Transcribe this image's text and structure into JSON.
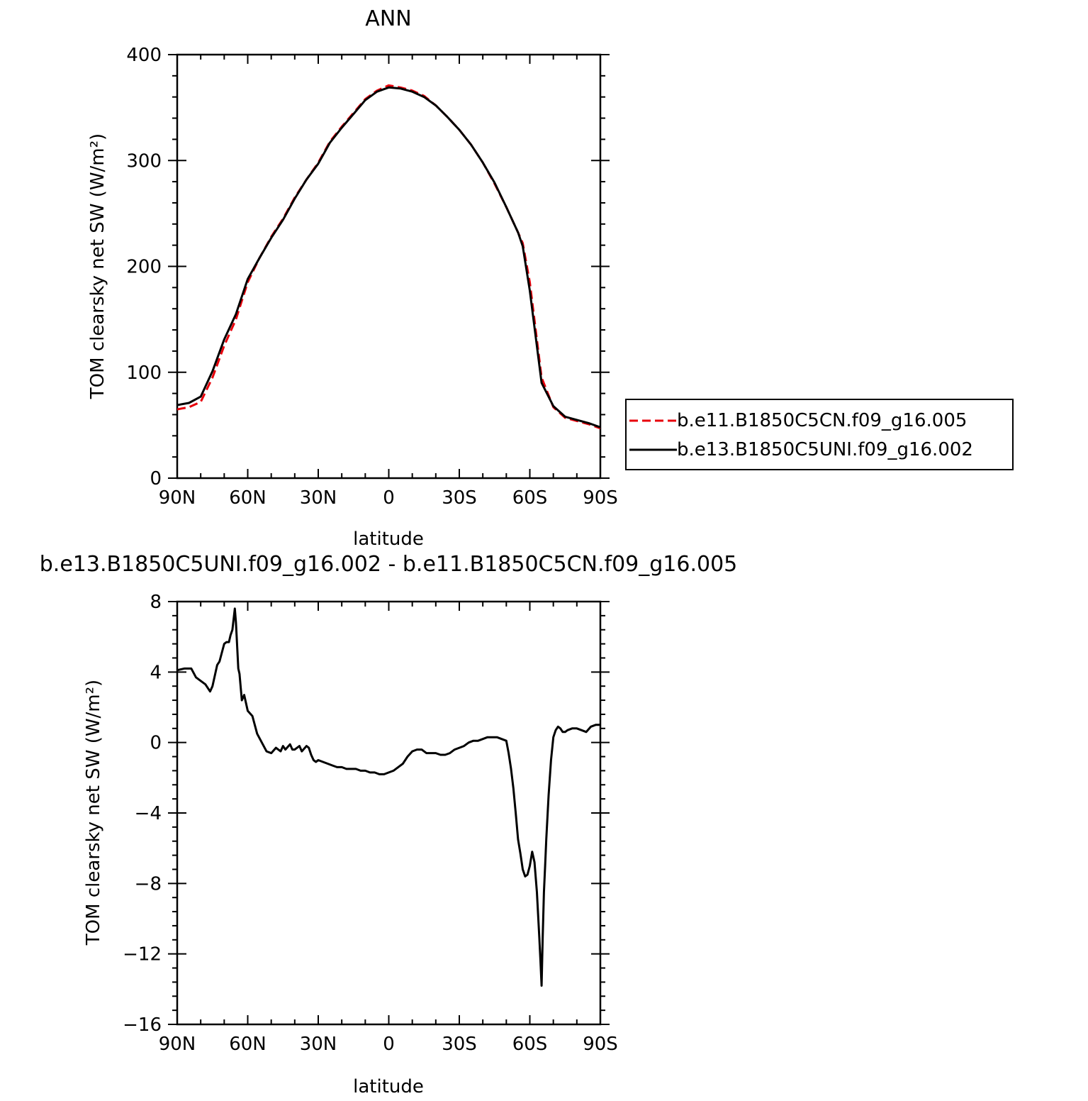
{
  "chart_data": [
    {
      "type": "line",
      "title": "ANN",
      "xlabel": "latitude",
      "ylabel": "TOM clearsky net SW (W/m²)",
      "xlim": [
        90,
        -90
      ],
      "ylim": [
        0,
        400
      ],
      "x_ticks": [
        {
          "value": 90,
          "label": "90N"
        },
        {
          "value": 60,
          "label": "60N"
        },
        {
          "value": 30,
          "label": "30N"
        },
        {
          "value": 0,
          "label": "0"
        },
        {
          "value": -30,
          "label": "30S"
        },
        {
          "value": -60,
          "label": "60S"
        },
        {
          "value": -90,
          "label": "90S"
        }
      ],
      "y_ticks": [
        {
          "value": 0,
          "label": "0"
        },
        {
          "value": 100,
          "label": "100"
        },
        {
          "value": 200,
          "label": "200"
        },
        {
          "value": 300,
          "label": "300"
        },
        {
          "value": 400,
          "label": "400"
        }
      ],
      "legend_position": "right",
      "series": [
        {
          "name": "b.e11.B1850C5CN.f09_g16.005",
          "color": "#e8000b",
          "style": "dashed",
          "x": [
            90,
            85,
            80,
            75,
            70,
            65,
            60,
            55,
            50,
            45,
            40,
            35,
            30,
            25,
            20,
            15,
            10,
            5,
            0,
            -5,
            -10,
            -15,
            -20,
            -25,
            -30,
            -35,
            -40,
            -45,
            -50,
            -55,
            -57,
            -60,
            -65,
            -70,
            -75,
            -80,
            -85,
            -90
          ],
          "y": [
            65,
            67,
            72,
            95,
            125,
            150,
            185,
            208,
            228,
            245,
            265,
            282,
            298,
            318,
            332,
            345,
            358,
            366,
            371,
            369,
            366,
            361,
            352,
            341,
            329,
            315,
            298,
            278,
            256,
            232,
            222,
            185,
            95,
            67,
            57,
            54,
            51,
            47
          ]
        },
        {
          "name": "b.e13.B1850C5UNI.f09_g16.002",
          "color": "#000000",
          "style": "solid",
          "x": [
            90,
            85,
            80,
            75,
            70,
            65,
            60,
            55,
            50,
            45,
            40,
            35,
            30,
            25,
            20,
            15,
            10,
            5,
            0,
            -5,
            -10,
            -15,
            -20,
            -25,
            -30,
            -35,
            -40,
            -45,
            -50,
            -55,
            -57,
            -60,
            -65,
            -70,
            -75,
            -80,
            -85,
            -90
          ],
          "y": [
            69,
            71,
            77,
            101,
            131,
            155,
            188,
            208,
            227,
            244,
            264,
            282,
            297,
            317,
            331,
            344,
            357,
            365,
            369,
            368,
            365,
            360,
            352,
            341,
            329,
            315,
            298,
            279,
            256,
            232,
            219,
            177,
            90,
            68,
            58,
            55,
            52,
            48
          ]
        }
      ]
    },
    {
      "type": "line",
      "title": "b.e13.B1850C5UNI.f09_g16.002 - b.e11.B1850C5CN.f09_g16.005",
      "xlabel": "latitude",
      "ylabel": "TOM clearsky net SW (W/m²)",
      "xlim": [
        90,
        -90
      ],
      "ylim": [
        -16,
        8
      ],
      "x_ticks": [
        {
          "value": 90,
          "label": "90N"
        },
        {
          "value": 60,
          "label": "60N"
        },
        {
          "value": 30,
          "label": "30N"
        },
        {
          "value": 0,
          "label": "0"
        },
        {
          "value": -30,
          "label": "30S"
        },
        {
          "value": -60,
          "label": "60S"
        },
        {
          "value": -90,
          "label": "90S"
        }
      ],
      "y_ticks": [
        {
          "value": -16,
          "label": "−16"
        },
        {
          "value": -12,
          "label": "−12"
        },
        {
          "value": -8,
          "label": "−8"
        },
        {
          "value": -4,
          "label": "−4"
        },
        {
          "value": 0,
          "label": "0"
        },
        {
          "value": 4,
          "label": "4"
        },
        {
          "value": 8,
          "label": "8"
        }
      ],
      "series": [
        {
          "color": "#000000",
          "style": "solid",
          "x": [
            90,
            87,
            84,
            82,
            80,
            78,
            76,
            75,
            73,
            72,
            70,
            69,
            68,
            67.3,
            66.5,
            65.5,
            65,
            64,
            63.5,
            62.5,
            61.5,
            60,
            58,
            56,
            54,
            52,
            50,
            48,
            46,
            45,
            44,
            42,
            41,
            40,
            38,
            37,
            35,
            34,
            33,
            32,
            31,
            30,
            28,
            26,
            24,
            22,
            20,
            18,
            16,
            14,
            12,
            10,
            8,
            6,
            4,
            2,
            0,
            -2,
            -4,
            -6,
            -8,
            -10,
            -12,
            -14,
            -16,
            -18,
            -20,
            -22,
            -24,
            -26,
            -28,
            -30,
            -32,
            -34,
            -36,
            -38,
            -40,
            -42,
            -44,
            -46,
            -48,
            -50,
            -51,
            -52,
            -53,
            -54,
            -55,
            -56,
            -57,
            -58,
            -59,
            -60,
            -61,
            -61.5,
            -62,
            -63,
            -64,
            -64.5,
            -65,
            -65.5,
            -66,
            -66.5,
            -67,
            -68,
            -69,
            -70,
            -71,
            -72,
            -73,
            -74,
            -75,
            -76,
            -78,
            -80,
            -82,
            -84,
            -86,
            -88,
            -90
          ],
          "y": [
            4.1,
            4.2,
            4.2,
            3.7,
            3.5,
            3.3,
            2.9,
            3.2,
            4.4,
            4.6,
            5.6,
            5.7,
            5.7,
            6.1,
            6.4,
            7.6,
            6.8,
            4.2,
            3.9,
            2.4,
            2.7,
            1.8,
            1.5,
            0.5,
            0.0,
            -0.5,
            -0.6,
            -0.3,
            -0.5,
            -0.2,
            -0.4,
            -0.1,
            -0.4,
            -0.4,
            -0.2,
            -0.5,
            -0.2,
            -0.3,
            -0.7,
            -1.0,
            -1.1,
            -1.0,
            -1.1,
            -1.2,
            -1.3,
            -1.4,
            -1.4,
            -1.5,
            -1.5,
            -1.5,
            -1.6,
            -1.6,
            -1.7,
            -1.7,
            -1.8,
            -1.8,
            -1.7,
            -1.6,
            -1.4,
            -1.2,
            -0.8,
            -0.5,
            -0.4,
            -0.4,
            -0.6,
            -0.6,
            -0.6,
            -0.7,
            -0.7,
            -0.6,
            -0.4,
            -0.3,
            -0.2,
            0.0,
            0.1,
            0.1,
            0.2,
            0.3,
            0.3,
            0.3,
            0.2,
            0.1,
            -0.6,
            -1.5,
            -2.6,
            -4.0,
            -5.5,
            -6.3,
            -7.2,
            -7.6,
            -7.5,
            -7.0,
            -6.2,
            -6.5,
            -6.8,
            -8.5,
            -11.0,
            -12.3,
            -13.8,
            -11.0,
            -8.5,
            -7.0,
            -5.5,
            -3.0,
            -1.0,
            0.3,
            0.7,
            0.9,
            0.8,
            0.6,
            0.6,
            0.7,
            0.8,
            0.8,
            0.7,
            0.6,
            0.9,
            1.0,
            1.0
          ]
        }
      ]
    }
  ]
}
